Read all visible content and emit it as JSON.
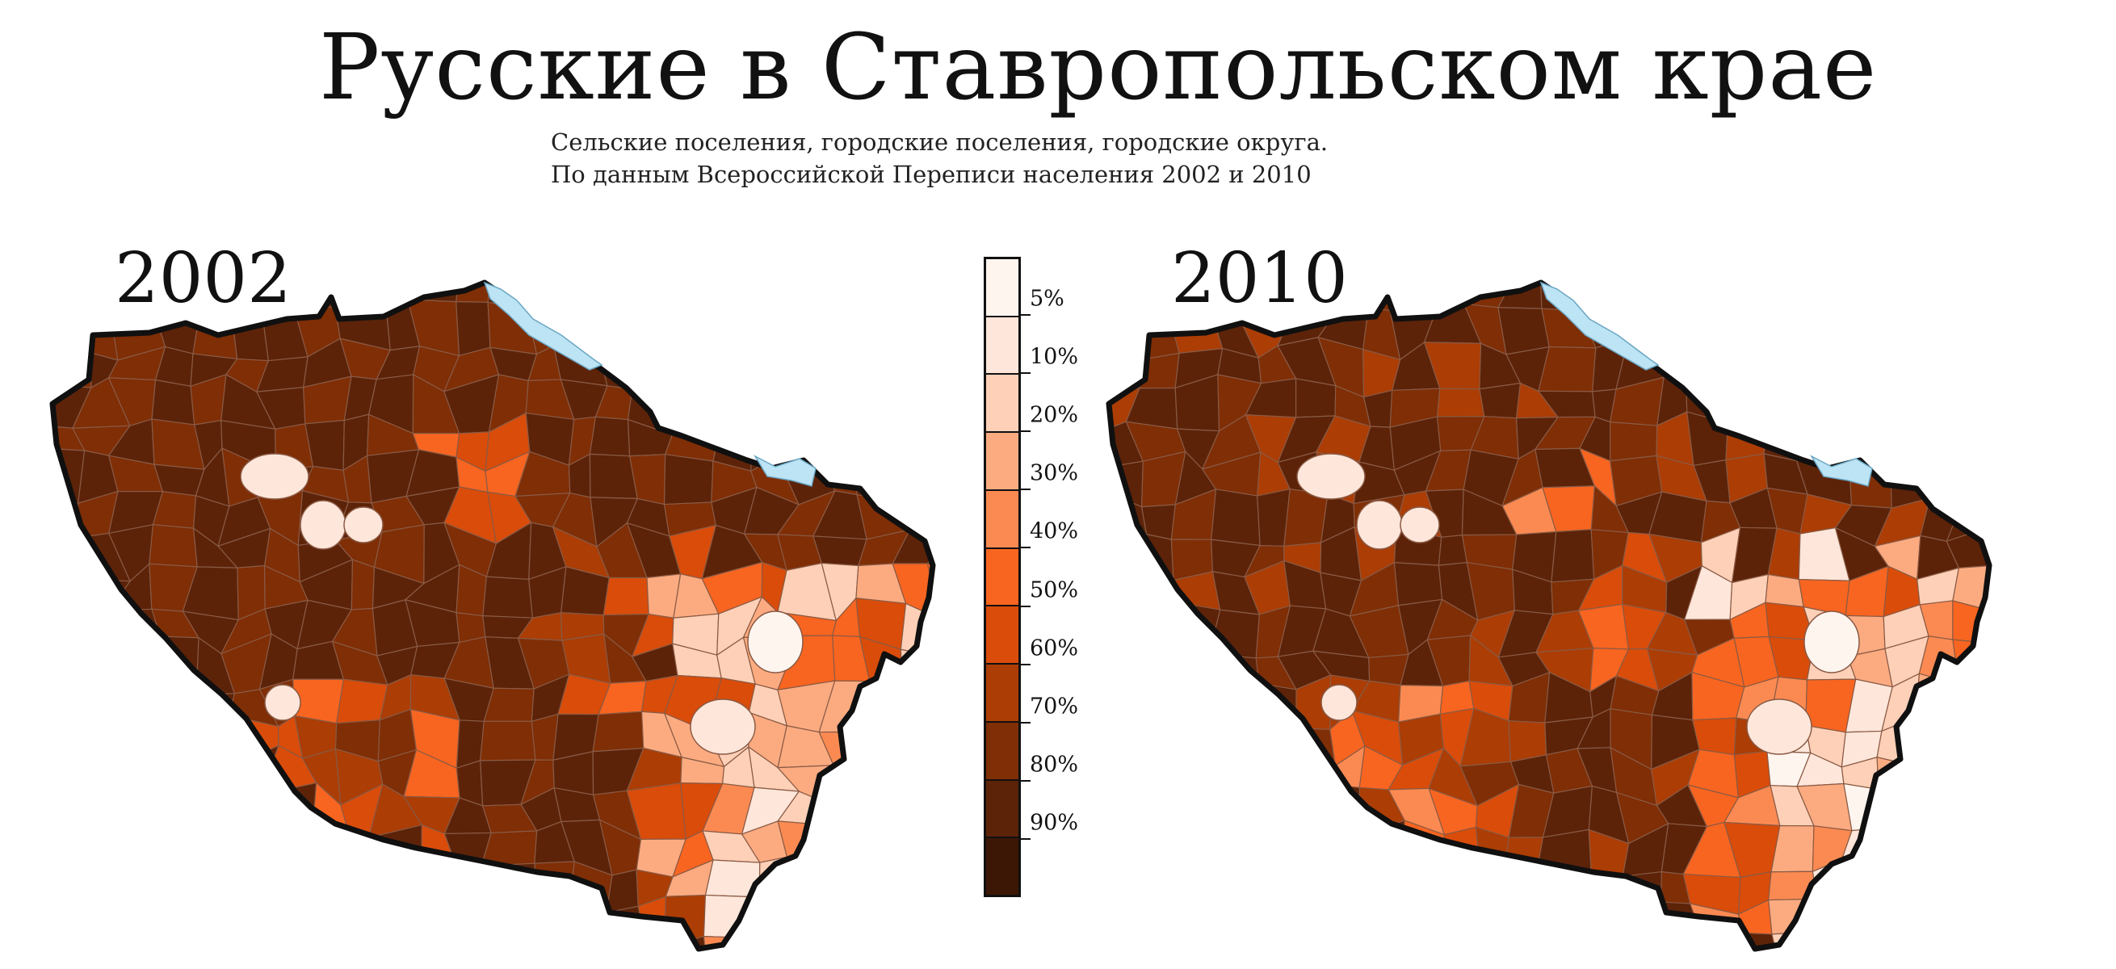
{
  "title": "Русские в Ставропольском крае",
  "subtitle_line1": "Сельские поселения, городские поселения, городские округа.",
  "subtitle_line2": "По данным Всероссийской Переписи населения  2002 и 2010",
  "maps": [
    {
      "year": "2002"
    },
    {
      "year": "2010"
    }
  ],
  "legend": {
    "labels": [
      "5%",
      "10%",
      "20%",
      "30%",
      "40%",
      "50%",
      "60%",
      "70%",
      "80%",
      "90%"
    ],
    "colors": [
      "#fff5ef",
      "#fee6da",
      "#fdd0b7",
      "#fcab81",
      "#fb8a52",
      "#f86520",
      "#da4c0a",
      "#ab3d05",
      "#7f2e06",
      "#5c2309",
      "#3d1706"
    ]
  },
  "colors": {
    "water": "#bde4f4",
    "border": "#101010",
    "inner_border": "#8a5a44"
  }
}
